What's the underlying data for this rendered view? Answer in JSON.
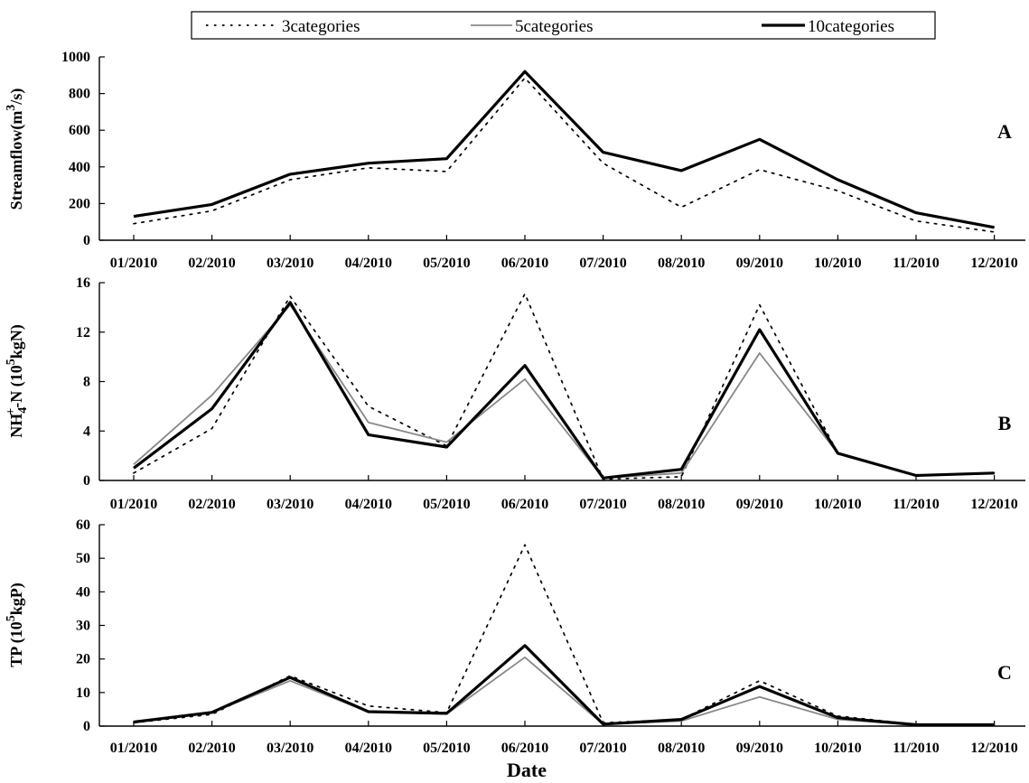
{
  "legend": {
    "items": [
      {
        "label": "3categories",
        "style": "dotted",
        "color": "#000000"
      },
      {
        "label": "5categories",
        "style": "solid",
        "color": "#888888"
      },
      {
        "label": "10categories",
        "style": "solid-thick",
        "color": "#000000"
      }
    ]
  },
  "xlabel": "Date",
  "chart_data": [
    {
      "type": "line",
      "panel_label": "A",
      "ylabel_parts": [
        "Streamflow(m",
        "3",
        "/s)"
      ],
      "ylim": [
        0,
        1000
      ],
      "yticks": [
        0,
        200,
        400,
        600,
        800,
        1000
      ],
      "categories": [
        "01/2010",
        "02/2010",
        "03/2010",
        "04/2010",
        "05/2010",
        "06/2010",
        "07/2010",
        "08/2010",
        "09/2010",
        "10/2010",
        "11/2010",
        "12/2010"
      ],
      "series": [
        {
          "name": "3categories",
          "values": [
            90,
            160,
            330,
            395,
            375,
            885,
            420,
            180,
            385,
            270,
            105,
            45
          ]
        },
        {
          "name": "5categories",
          "values": [
            130,
            195,
            360,
            420,
            445,
            920,
            480,
            380,
            550,
            330,
            150,
            70
          ]
        },
        {
          "name": "10categories",
          "values": [
            130,
            195,
            360,
            420,
            445,
            920,
            480,
            380,
            550,
            330,
            150,
            70
          ]
        }
      ]
    },
    {
      "type": "line",
      "panel_label": "B",
      "ylabel_parts": [
        "NH",
        "4",
        "+",
        "-N (10",
        "5",
        "kgN)"
      ],
      "ylim": [
        0,
        16
      ],
      "yticks": [
        0,
        4,
        8,
        12,
        16
      ],
      "categories": [
        "01/2010",
        "02/2010",
        "03/2010",
        "04/2010",
        "05/2010",
        "06/2010",
        "07/2010",
        "08/2010",
        "09/2010",
        "10/2010",
        "11/2010",
        "12/2010"
      ],
      "series": [
        {
          "name": "3categories",
          "values": [
            0.6,
            4.2,
            14.9,
            6.0,
            2.8,
            15.1,
            0.1,
            0.3,
            14.2,
            2.2,
            0.4,
            0.6
          ]
        },
        {
          "name": "5categories",
          "values": [
            1.3,
            6.9,
            14.2,
            4.7,
            3.1,
            8.2,
            0.2,
            0.6,
            10.3,
            2.2,
            0.4,
            0.6
          ]
        },
        {
          "name": "10categories",
          "values": [
            1.0,
            5.8,
            14.4,
            3.7,
            2.7,
            9.3,
            0.2,
            0.9,
            12.2,
            2.2,
            0.4,
            0.6
          ]
        }
      ]
    },
    {
      "type": "line",
      "panel_label": "C",
      "ylabel_parts": [
        "TP (10",
        "5",
        "kgP)"
      ],
      "ylim": [
        0,
        60
      ],
      "yticks": [
        0,
        10,
        20,
        30,
        40,
        50,
        60
      ],
      "categories": [
        "01/2010",
        "02/2010",
        "03/2010",
        "04/2010",
        "05/2010",
        "06/2010",
        "07/2010",
        "08/2010",
        "09/2010",
        "10/2010",
        "11/2010",
        "12/2010"
      ],
      "series": [
        {
          "name": "3categories",
          "values": [
            1.0,
            3.5,
            15.0,
            6.0,
            4.0,
            54.0,
            1.0,
            2.0,
            13.5,
            3.0,
            0.5,
            0.5
          ]
        },
        {
          "name": "5categories",
          "values": [
            1.2,
            4.0,
            13.5,
            4.2,
            3.6,
            20.5,
            0.5,
            1.5,
            8.7,
            2.0,
            0.3,
            0.3
          ]
        },
        {
          "name": "10categories",
          "values": [
            1.2,
            4.1,
            14.5,
            4.3,
            3.8,
            24.0,
            0.6,
            2.0,
            11.8,
            2.5,
            0.4,
            0.4
          ]
        }
      ]
    }
  ]
}
